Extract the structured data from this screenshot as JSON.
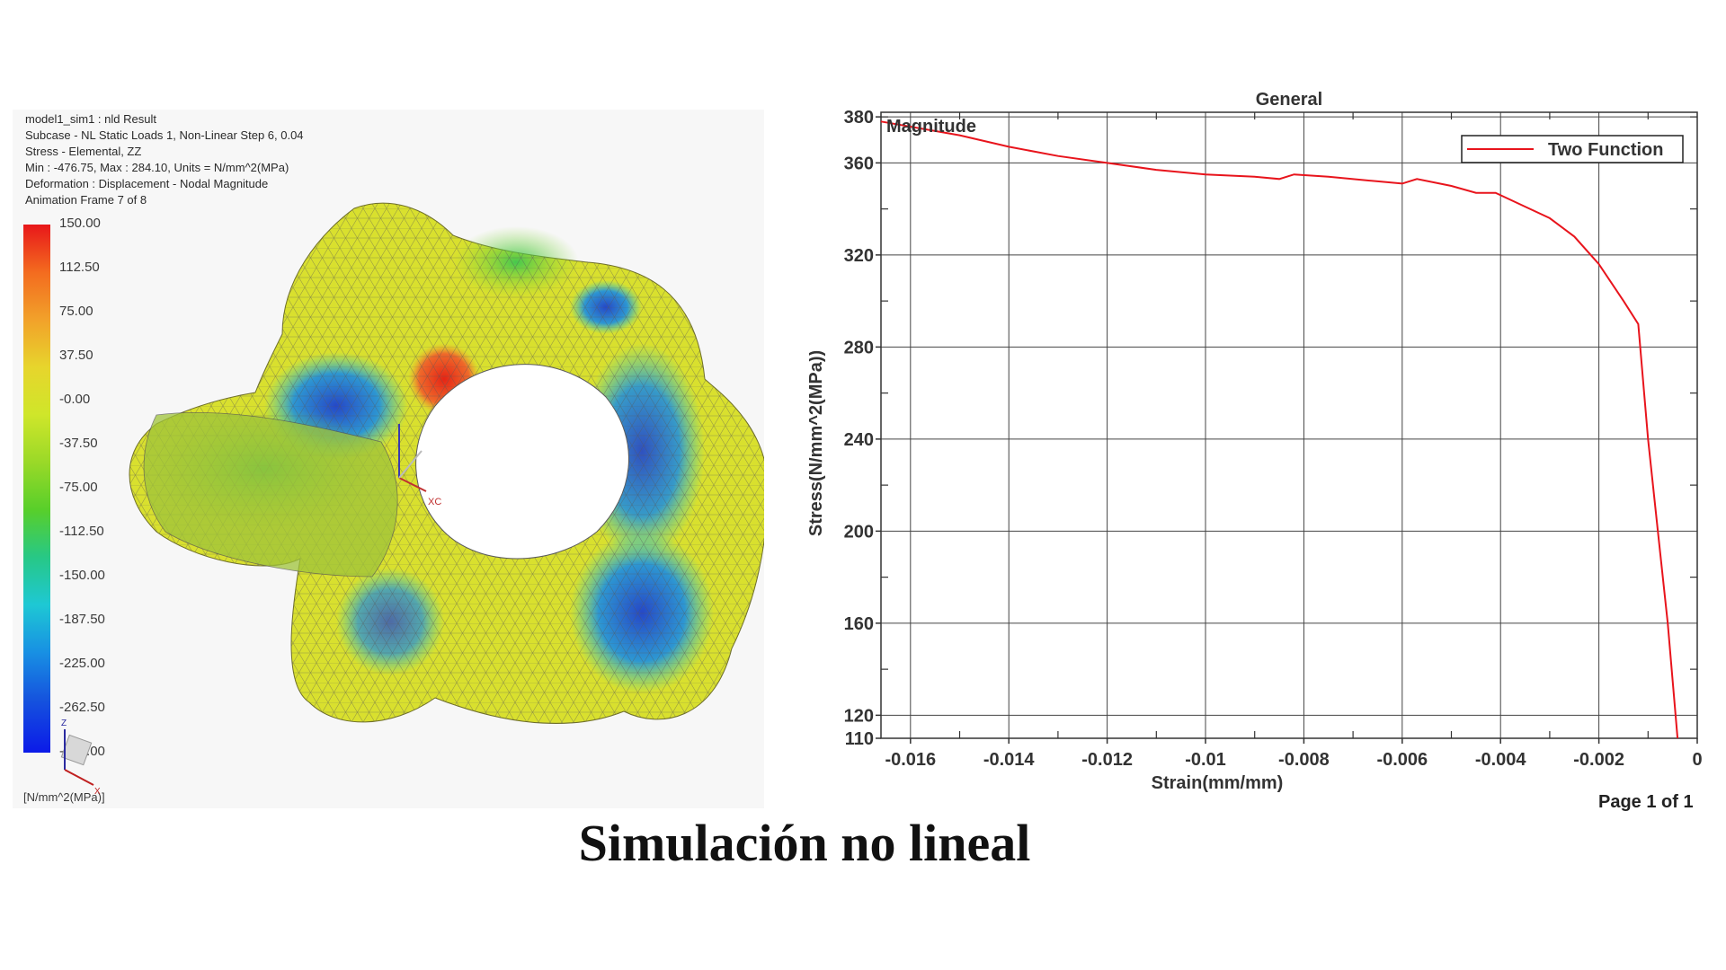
{
  "fea": {
    "header_lines": [
      "model1_sim1 : nld Result",
      "Subcase - NL Static Loads 1, Non-Linear Step 6, 0.04",
      "Stress - Elemental, ZZ",
      "Min : -476.75, Max : 284.10, Units = N/mm^2(MPa)",
      "Deformation : Displacement - Nodal Magnitude",
      "Animation Frame 7 of 8"
    ],
    "colorbar_labels": [
      "150.00",
      "112.50",
      "75.00",
      "37.50",
      "-0.00",
      "-37.50",
      "-75.00",
      "-112.50",
      "-150.00",
      "-187.50",
      "-225.00",
      "-262.50",
      "-300.00"
    ],
    "units": "[N/mm^2(MPa)]",
    "csys_label": "XC",
    "triad_labels": {
      "z": "Z",
      "x": "X"
    }
  },
  "chart_data": {
    "type": "line",
    "title": "General",
    "corner_label": "Magnitude",
    "xlabel": "Strain(mm/mm)",
    "ylabel": "Stress(N/mm^2(MPa))",
    "xlim": [
      -0.0166,
      0
    ],
    "ylim": [
      110,
      382
    ],
    "xticks": [
      -0.016,
      -0.014,
      -0.012,
      -0.01,
      -0.008,
      -0.006,
      -0.004,
      -0.002,
      0
    ],
    "xtick_labels": [
      "-0.016",
      "-0.014",
      "-0.012",
      "-0.01",
      "-0.008",
      "-0.006",
      "-0.004",
      "-0.002",
      "0"
    ],
    "yticks": [
      110,
      120,
      160,
      200,
      240,
      280,
      320,
      360,
      380
    ],
    "ytick_labels": [
      "110",
      "120",
      "160",
      "200",
      "240",
      "280",
      "320",
      "360",
      "380"
    ],
    "grid": true,
    "legend_position": "top-right",
    "series_color": "#e8141c",
    "series": [
      {
        "name": "Two Function",
        "x": [
          -0.0166,
          -0.015,
          -0.014,
          -0.013,
          -0.012,
          -0.011,
          -0.01,
          -0.009,
          -0.0085,
          -0.0082,
          -0.0075,
          -0.0065,
          -0.006,
          -0.0057,
          -0.005,
          -0.0045,
          -0.0041,
          -0.0035,
          -0.003,
          -0.0025,
          -0.002,
          -0.0015,
          -0.0012,
          -0.001,
          -0.0008,
          -0.0006,
          -0.0004
        ],
        "y": [
          378,
          372,
          367,
          363,
          360,
          357,
          355,
          354,
          353,
          355,
          354,
          352,
          351,
          353,
          350,
          347,
          347,
          341,
          336,
          328,
          316,
          300,
          290,
          240,
          200,
          160,
          110
        ]
      }
    ]
  },
  "page": {
    "label": "Page 1 of 1"
  },
  "caption": "Simulación no lineal"
}
